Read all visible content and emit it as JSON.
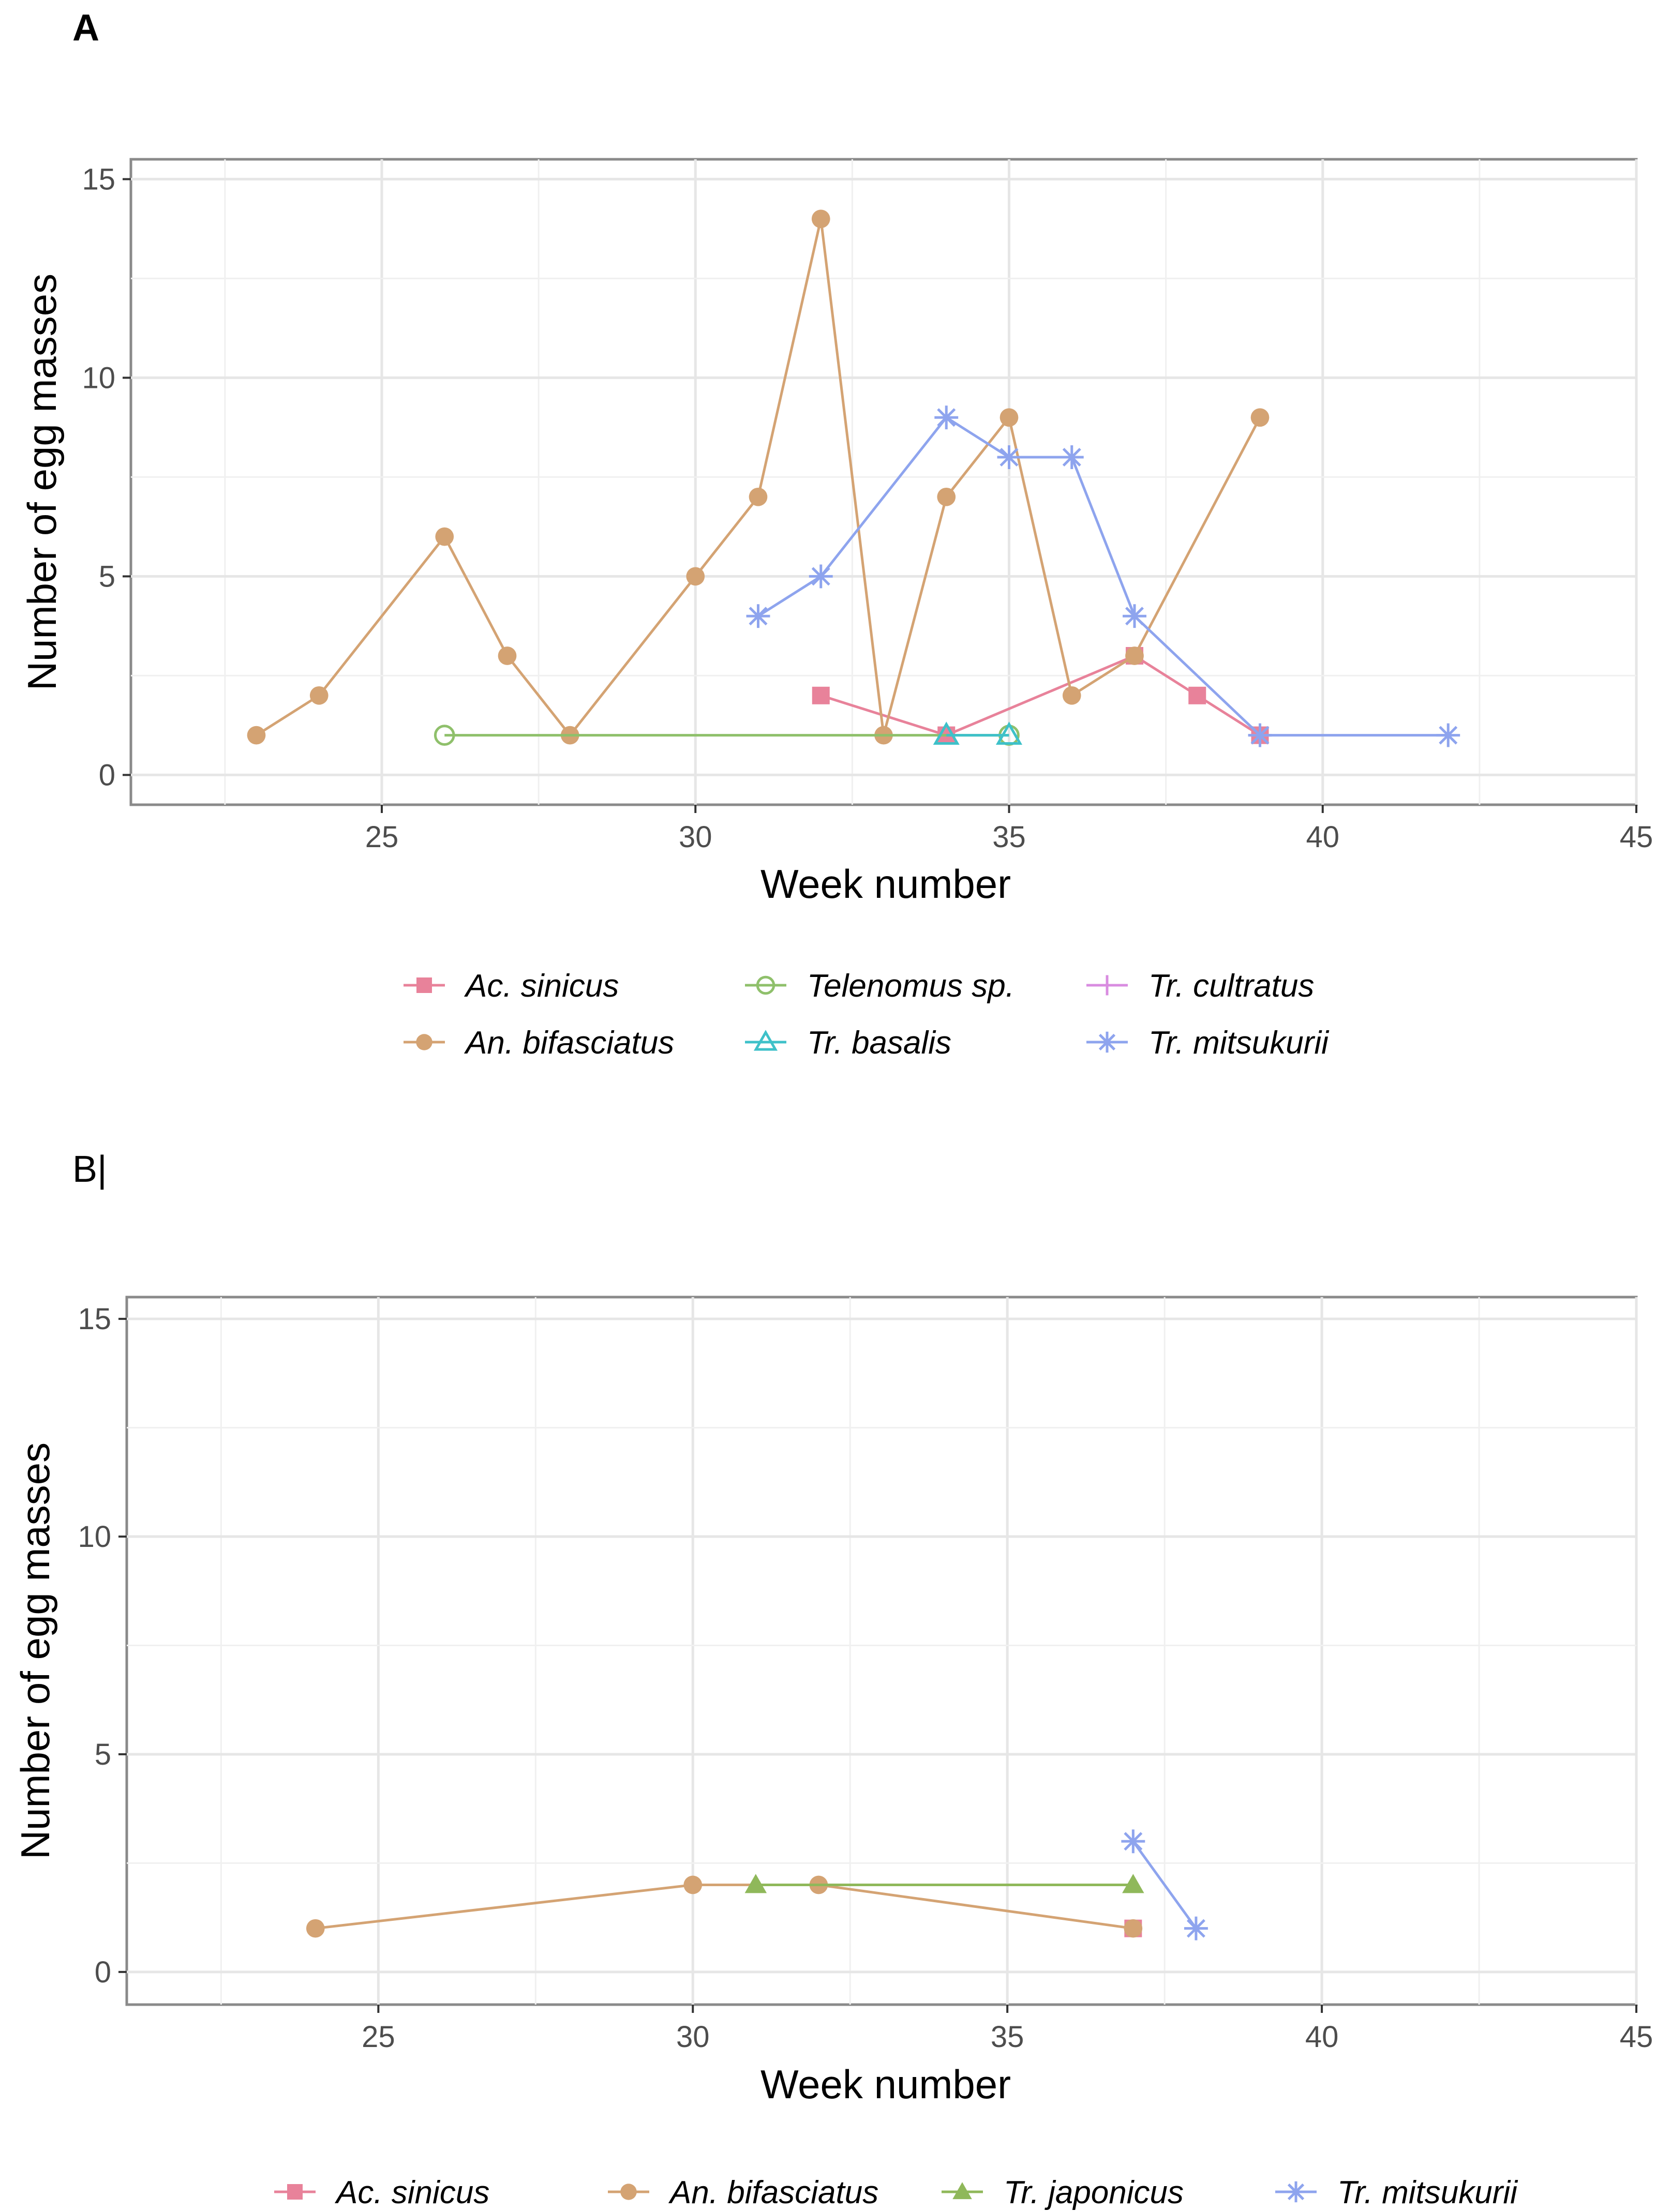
{
  "chart_data": [
    {
      "panel": "A",
      "type": "line",
      "xlabel": "Week number",
      "ylabel": "Number of egg masses",
      "xlim": [
        21,
        45
      ],
      "ylim": [
        -0.75,
        15.5
      ],
      "xticks": [
        25,
        30,
        35,
        40,
        45
      ],
      "yticks": [
        0,
        5,
        10,
        15
      ],
      "grid": true,
      "legend_position": "bottom",
      "series": [
        {
          "name": "Ac. sinicus",
          "color": "#e8829a",
          "marker": "square",
          "x": [
            32,
            34,
            37,
            38,
            39
          ],
          "y": [
            2,
            1,
            3,
            2,
            1
          ]
        },
        {
          "name": "An. bifasciatus",
          "color": "#d4a373",
          "marker": "circle",
          "x": [
            23,
            24,
            26,
            27,
            28,
            30,
            31,
            32,
            33,
            34,
            35,
            36,
            37,
            39
          ],
          "y": [
            1,
            2,
            6,
            3,
            1,
            5,
            7,
            14,
            1,
            7,
            9,
            2,
            3,
            9
          ]
        },
        {
          "name": "Telenomus sp.",
          "color": "#8fc06b",
          "marker": "circle-open",
          "x": [
            26,
            35
          ],
          "y": [
            1,
            1
          ]
        },
        {
          "name": "Tr. basalis",
          "color": "#3ec1c9",
          "marker": "triangle-open",
          "x": [
            34,
            35
          ],
          "y": [
            1,
            1
          ]
        },
        {
          "name": "Tr. cultratus",
          "color": "#d98ce0",
          "marker": "plus",
          "x": [
            39
          ],
          "y": [
            1
          ]
        },
        {
          "name": "Tr. mitsukurii",
          "color": "#8ea4ee",
          "marker": "asterisk",
          "x": [
            31,
            32,
            34,
            35,
            36,
            37,
            39,
            42
          ],
          "y": [
            4,
            5,
            9,
            8,
            8,
            4,
            1,
            1
          ]
        }
      ],
      "legend_order": [
        "Ac. sinicus",
        "Telenomus sp.",
        "Tr. cultratus",
        "An. bifasciatus",
        "Tr. basalis",
        "Tr. mitsukurii"
      ]
    },
    {
      "panel": "B|",
      "type": "line",
      "xlabel": "Week number",
      "ylabel": "Number of egg masses",
      "xlim": [
        21,
        45
      ],
      "ylim": [
        -0.75,
        15.5
      ],
      "xticks": [
        25,
        30,
        35,
        40,
        45
      ],
      "yticks": [
        0,
        5,
        10,
        15
      ],
      "grid": true,
      "legend_position": "bottom",
      "series": [
        {
          "name": "Ac. sinicus",
          "color": "#e8829a",
          "marker": "square",
          "x": [
            37
          ],
          "y": [
            1
          ]
        },
        {
          "name": "An. bifasciatus",
          "color": "#d4a373",
          "marker": "circle",
          "x": [
            24,
            30,
            32,
            37
          ],
          "y": [
            1,
            2,
            2,
            1
          ]
        },
        {
          "name": "Tr. japonicus",
          "color": "#8fb85a",
          "marker": "triangle",
          "x": [
            31,
            37
          ],
          "y": [
            2,
            2
          ]
        },
        {
          "name": "Tr. mitsukurii",
          "color": "#8ea4ee",
          "marker": "asterisk",
          "x": [
            37,
            38
          ],
          "y": [
            3,
            1
          ]
        }
      ],
      "legend_order": [
        "Ac. sinicus",
        "An. bifasciatus",
        "Tr. japonicus",
        "Tr. mitsukurii"
      ]
    }
  ]
}
